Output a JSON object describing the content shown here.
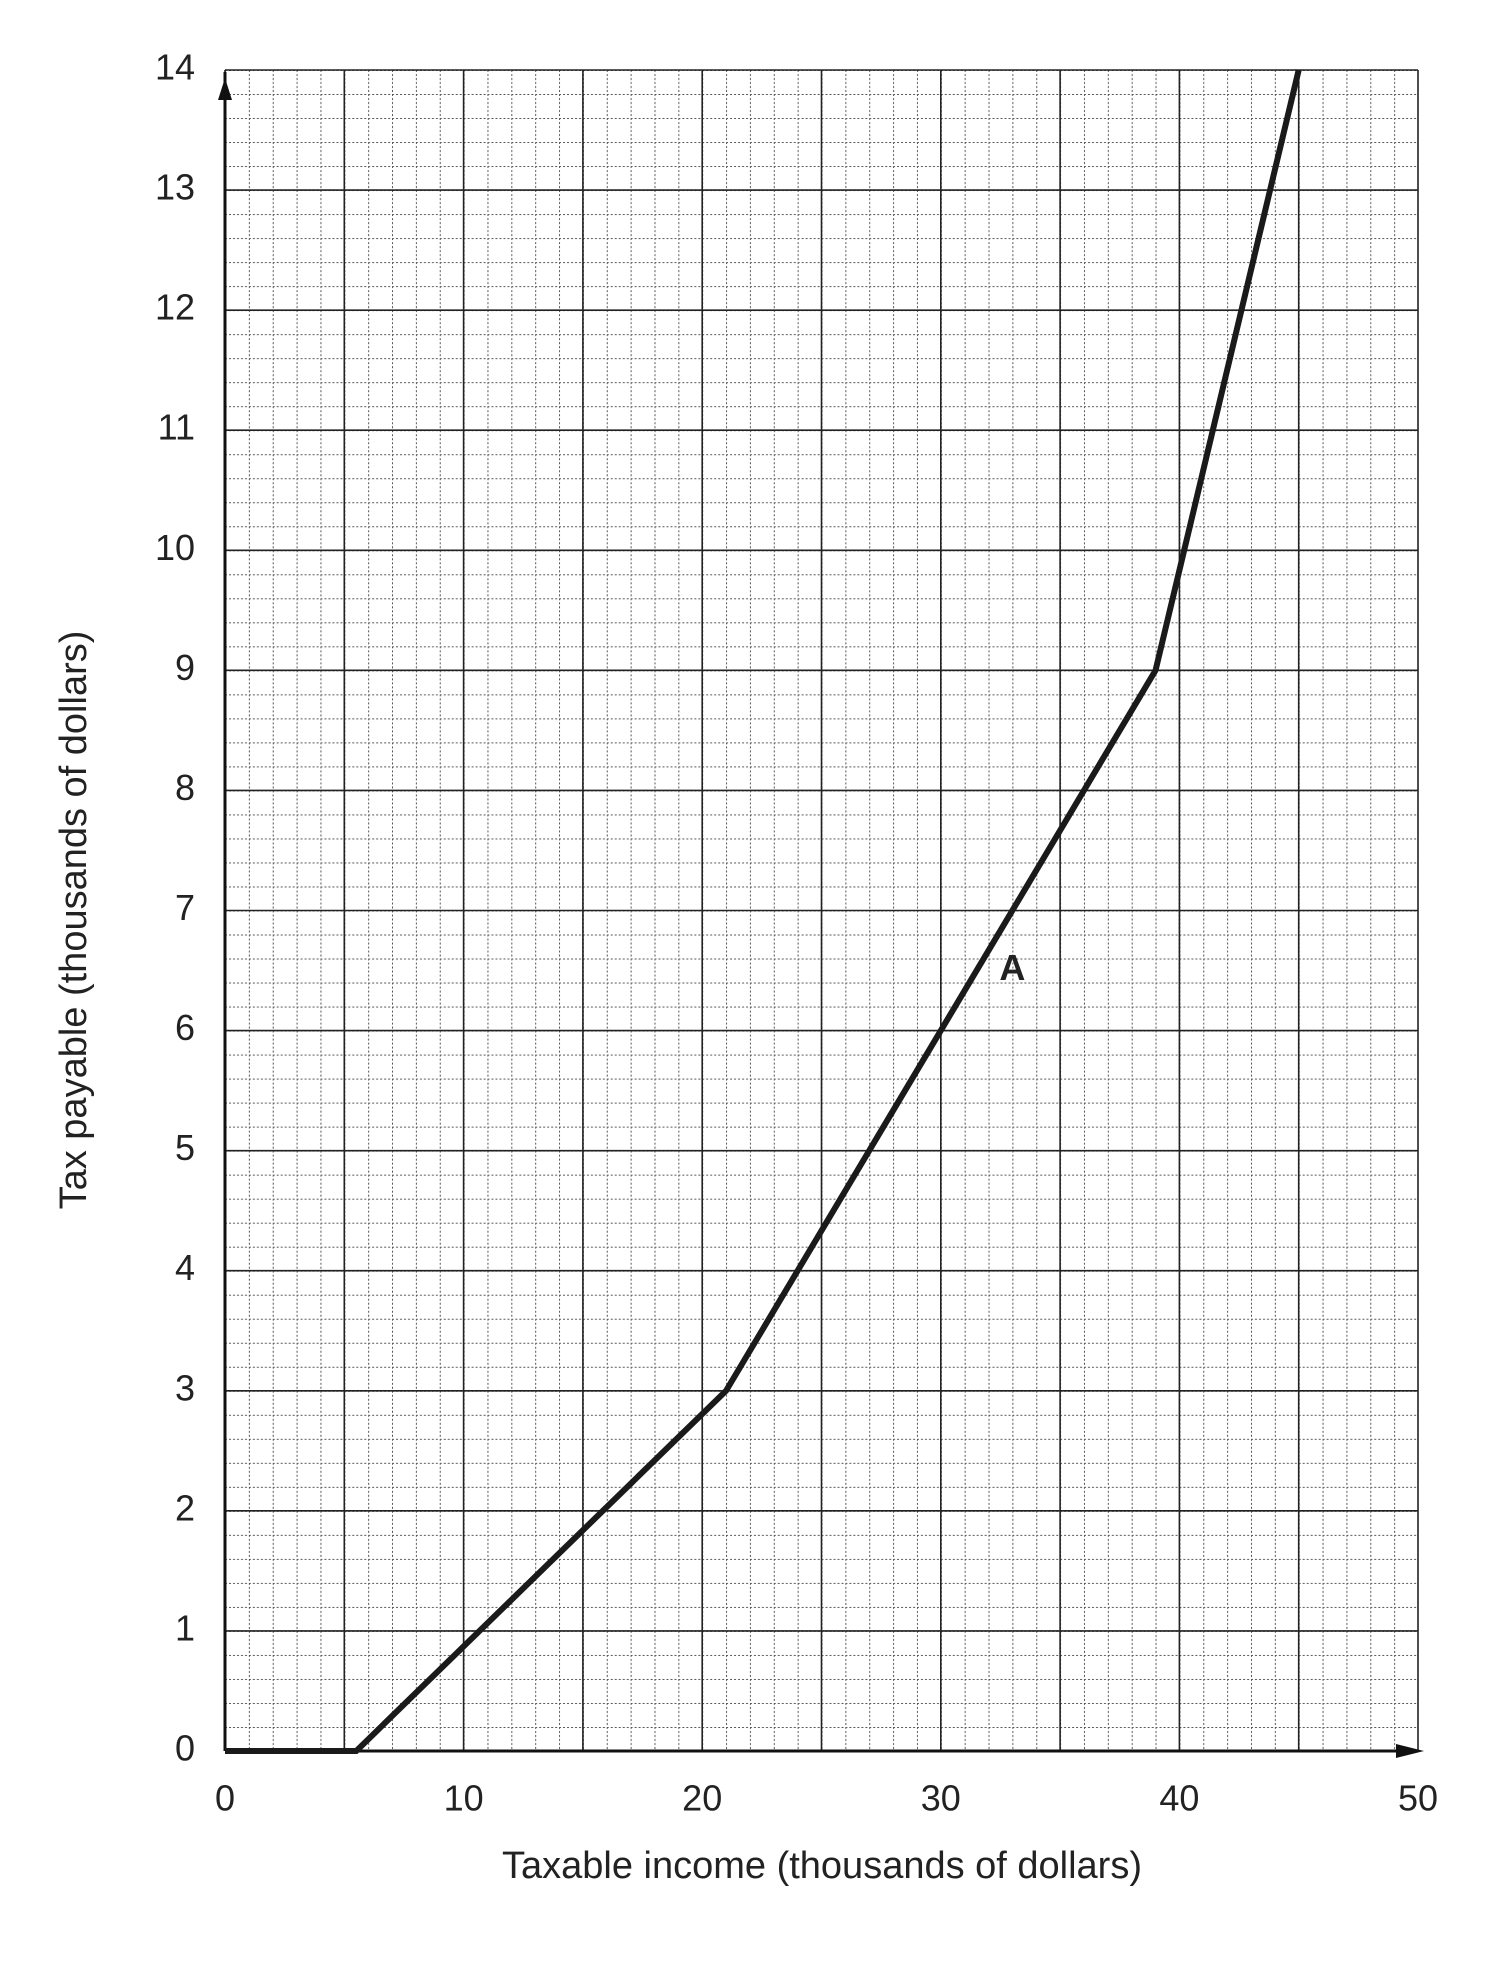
{
  "chart_data": {
    "type": "line",
    "x_label": "Taxable income (thousands of dollars)",
    "y_label": "Tax payable (thousands of dollars)",
    "series": [
      {
        "name": "Tax payable",
        "color": "#1a1a1a",
        "x": [
          0,
          5.5,
          21,
          39,
          45
        ],
        "values": [
          0,
          0,
          3,
          9,
          14
        ]
      }
    ],
    "annotations": [
      {
        "text": "A",
        "x": 33,
        "y": 6.5
      }
    ],
    "xlim": [
      0,
      50
    ],
    "ylim": [
      0,
      14
    ],
    "xticks": [
      0,
      10,
      20,
      30,
      40,
      50
    ],
    "yticks": [
      0,
      1,
      2,
      3,
      4,
      5,
      6,
      7,
      8,
      9,
      10,
      11,
      12,
      13,
      14
    ],
    "xgrid": [
      0,
      5,
      10,
      15,
      20,
      25,
      30,
      35,
      40,
      45,
      50
    ],
    "grid": true,
    "minor_grid": {
      "x_step": 1,
      "y_step": 0.2
    }
  }
}
